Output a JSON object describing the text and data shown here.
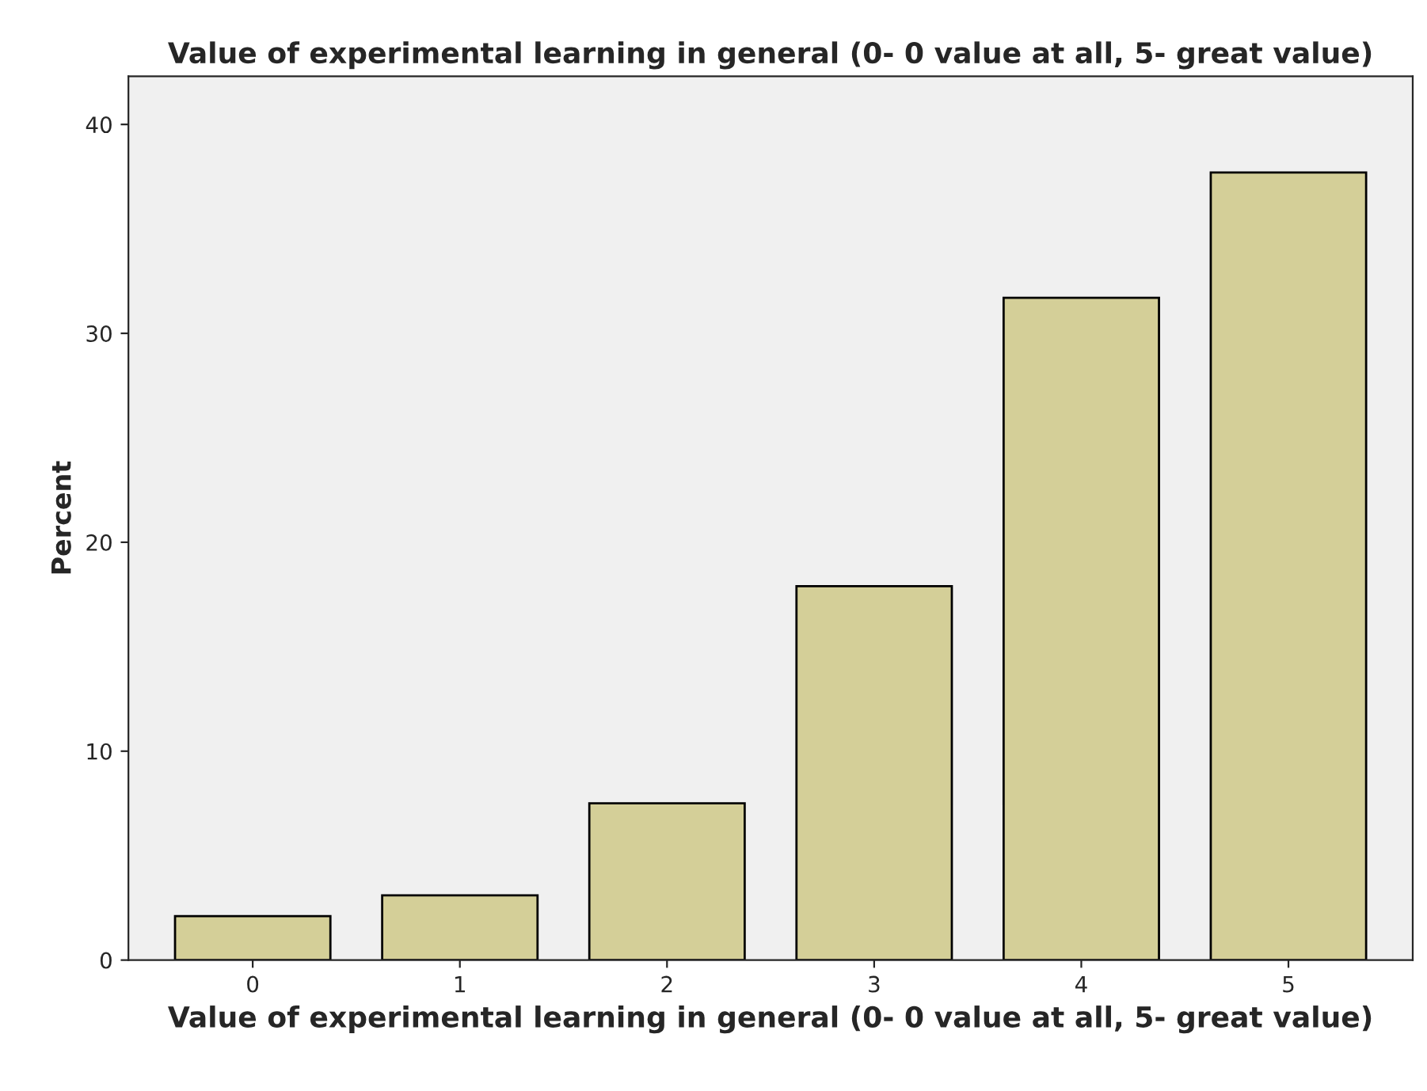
{
  "chart_data": {
    "type": "bar",
    "title": "Value of experimental learning in general (0- 0 value at all, 5- great value)",
    "xlabel": "Value of experimental learning in general (0- 0 value at all, 5- great value)",
    "ylabel": "Percent",
    "categories": [
      "0",
      "1",
      "2",
      "3",
      "4",
      "5"
    ],
    "values": [
      2.1,
      3.1,
      7.5,
      17.9,
      31.7,
      37.7
    ],
    "color": "#d4cf98",
    "ylim": [
      0,
      42.3
    ],
    "yticks": [
      0,
      10,
      20,
      30,
      40
    ],
    "grid": false,
    "legend": false
  }
}
